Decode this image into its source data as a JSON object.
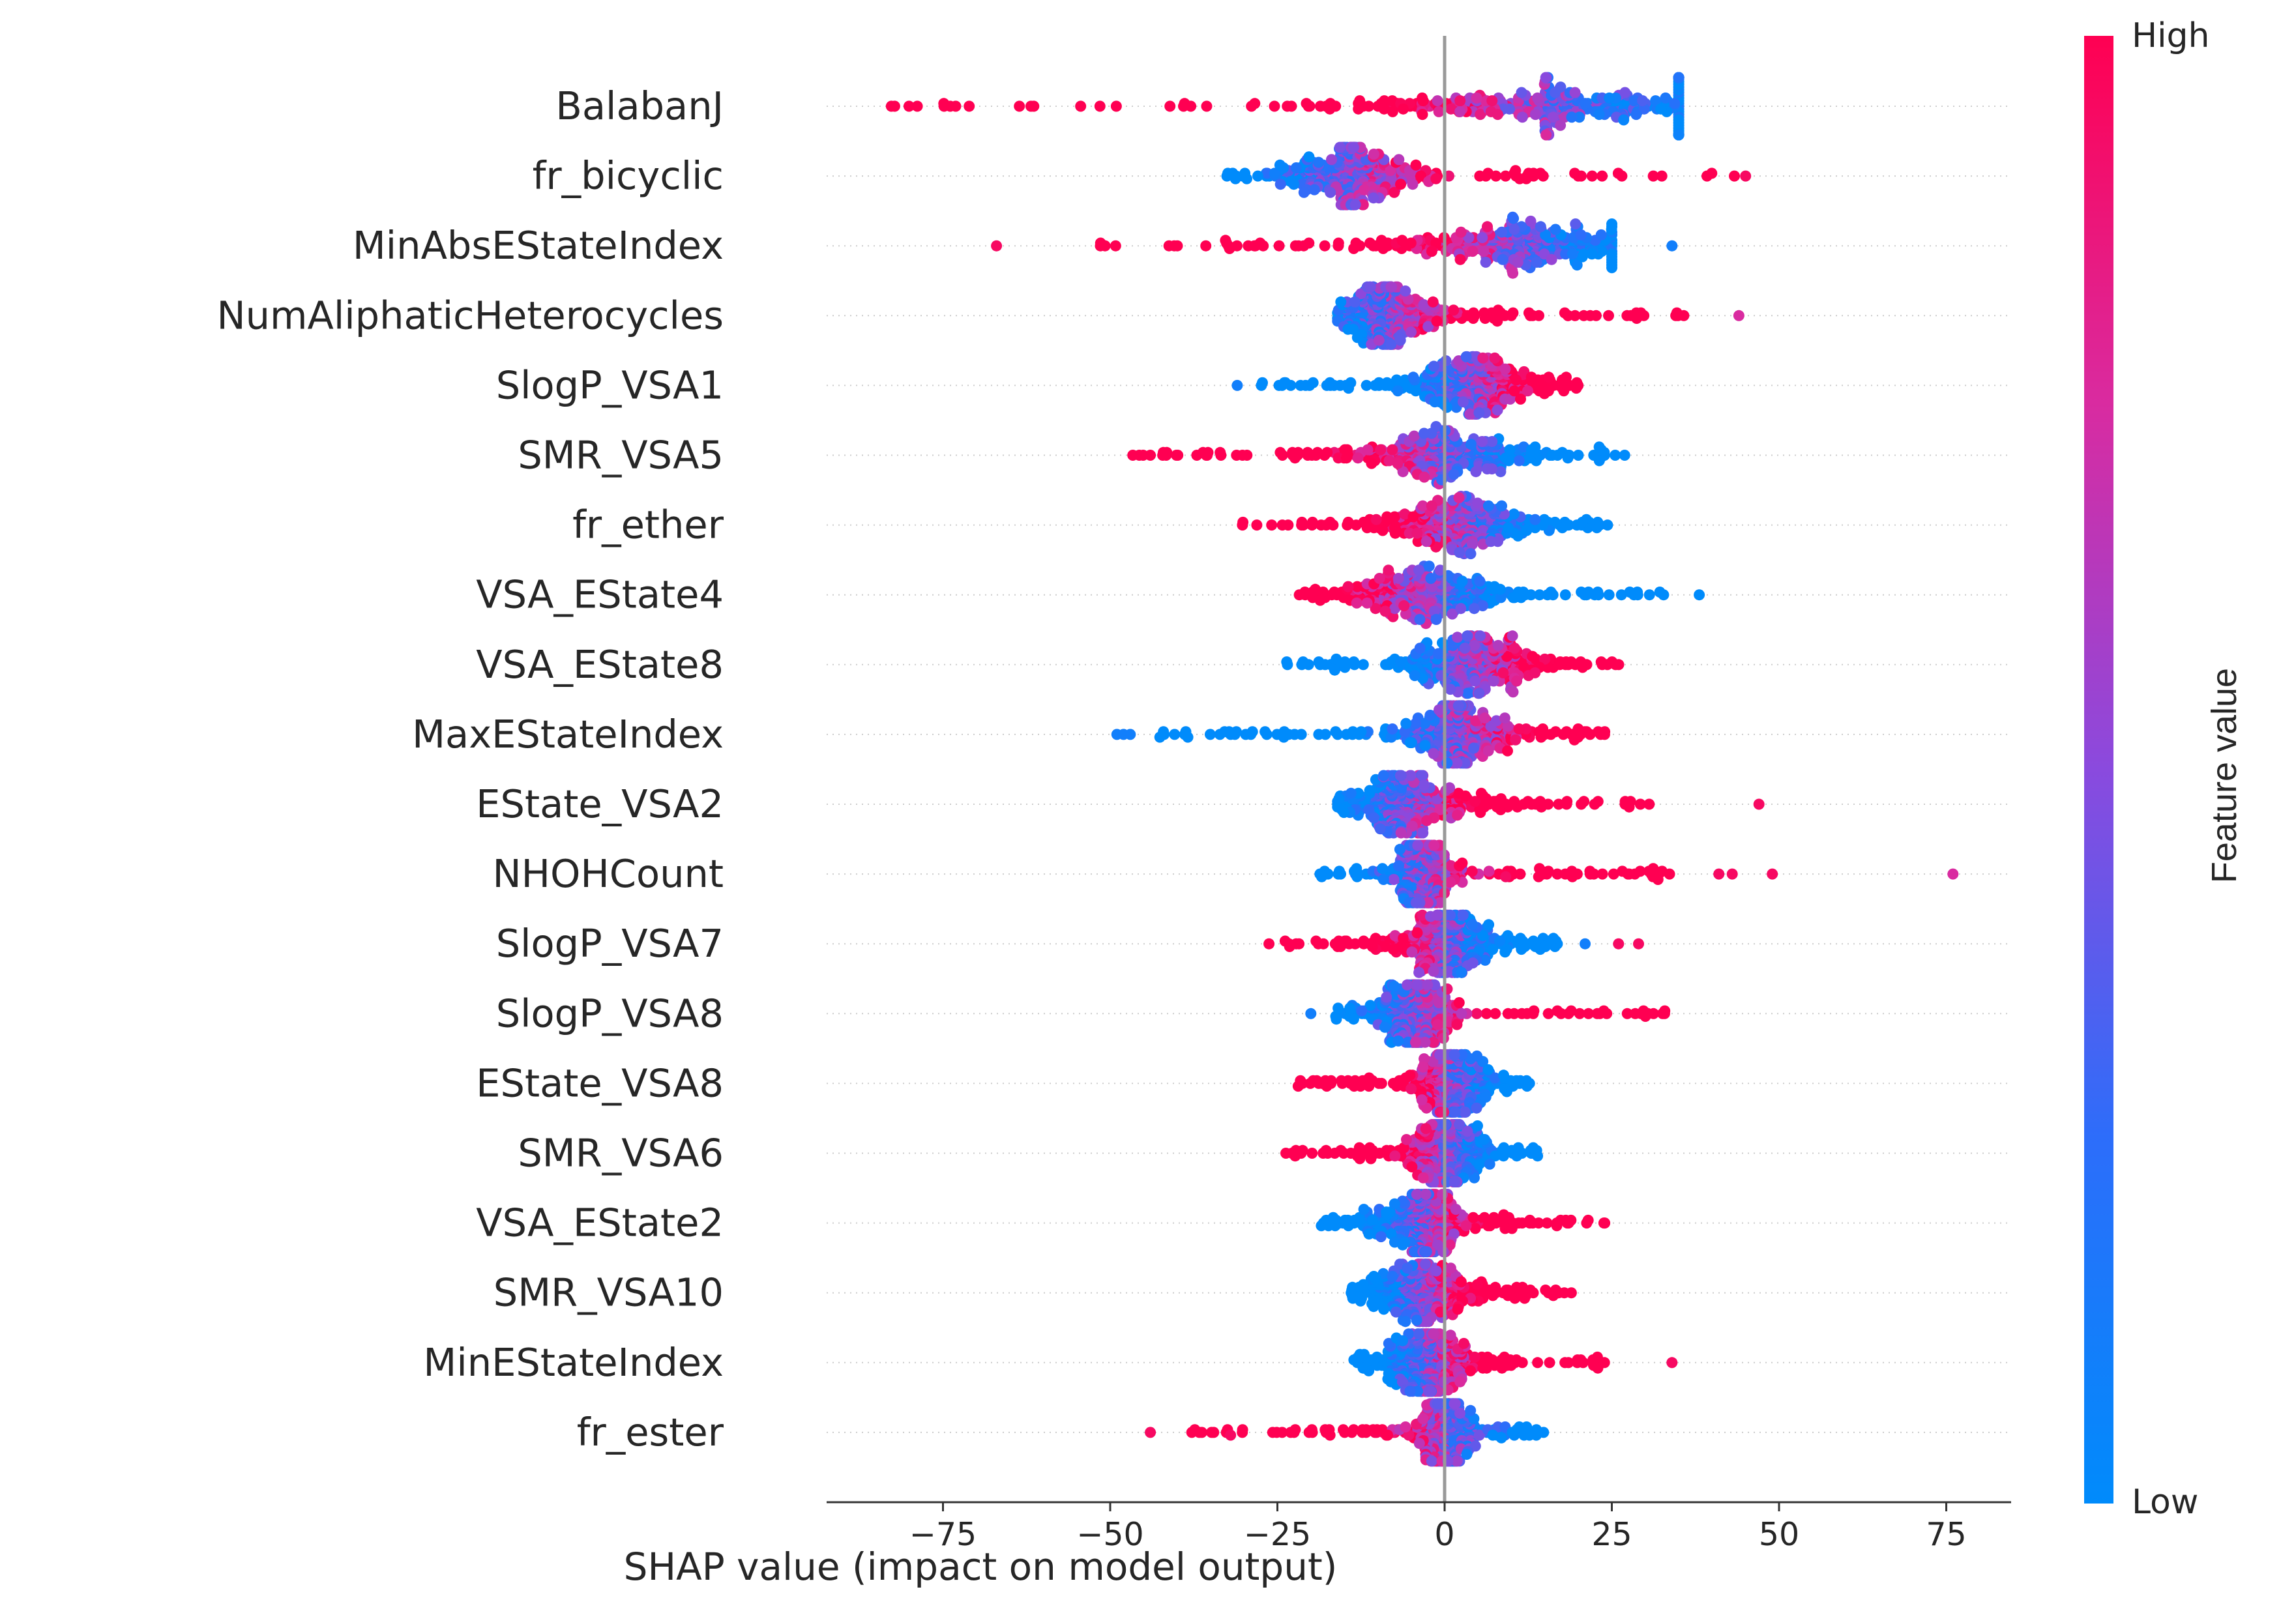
{
  "chart_data": {
    "type": "scatter",
    "subtype": "shap-beeswarm",
    "title": "",
    "xlabel": "SHAP value (impact on model output)",
    "ylabel": "",
    "xlim": [
      -92,
      85
    ],
    "xticks": [
      {
        "value": -75,
        "label": "−75"
      },
      {
        "value": -50,
        "label": "−50"
      },
      {
        "value": -25,
        "label": "−25"
      },
      {
        "value": 0,
        "label": "0"
      },
      {
        "value": 25,
        "label": "25"
      },
      {
        "value": 50,
        "label": "50"
      },
      {
        "value": 75,
        "label": "75"
      }
    ],
    "zero_line": true,
    "grid": false,
    "colorbar": {
      "title": "Feature value",
      "high_label": "High",
      "low_label": "Low",
      "low_color": "#008bfb",
      "high_color": "#ff0052",
      "placement": "right"
    },
    "features": [
      {
        "name": "BalabanJ",
        "range": [
          -85,
          35
        ],
        "low_side": "positive",
        "mode": 15,
        "spread": 18,
        "outliers": []
      },
      {
        "name": "fr_bicyclic",
        "range": [
          -33,
          45
        ],
        "low_side": "negative",
        "mode": -14,
        "spread": 5,
        "outliers": [
          {
            "x": 45,
            "v": 0.95
          }
        ]
      },
      {
        "name": "MinAbsEStateIndex",
        "range": [
          -52,
          25
        ],
        "low_side": "positive",
        "mode": 10,
        "spread": 10,
        "outliers": [
          {
            "x": -67,
            "v": 0.95
          },
          {
            "x": 34,
            "v": 0.1
          }
        ]
      },
      {
        "name": "NumAliphaticHeterocycles",
        "range": [
          -16,
          38
        ],
        "low_side": "negative",
        "mode": -8,
        "spread": 4,
        "outliers": [
          {
            "x": 44,
            "v": 0.75
          }
        ]
      },
      {
        "name": "SlogP_VSA1",
        "range": [
          -28,
          20
        ],
        "low_side": "negative",
        "mode": 4,
        "spread": 5,
        "outliers": [
          {
            "x": -31,
            "v": 0.1
          }
        ]
      },
      {
        "name": "SMR_VSA5",
        "range": [
          -50,
          27
        ],
        "low_side": "positive",
        "mode": -1,
        "spread": 8,
        "outliers": []
      },
      {
        "name": "fr_ether",
        "range": [
          -31,
          26
        ],
        "low_side": "positive",
        "mode": 3,
        "spread": 6,
        "outliers": []
      },
      {
        "name": "VSA_EState4",
        "range": [
          -22,
          39
        ],
        "low_side": "positive",
        "mode": -3,
        "spread": 7,
        "outliers": []
      },
      {
        "name": "VSA_EState8",
        "range": [
          -24,
          27
        ],
        "low_side": "negative",
        "mode": 4,
        "spread": 5,
        "outliers": []
      },
      {
        "name": "MaxEStateIndex",
        "range": [
          -43,
          24
        ],
        "low_side": "negative",
        "mode": 2,
        "spread": 4,
        "outliers": [
          {
            "x": -49,
            "v": 0.1
          },
          {
            "x": -48,
            "v": 0.1
          },
          {
            "x": -47,
            "v": 0.1
          }
        ]
      },
      {
        "name": "EState_VSA2",
        "range": [
          -16,
          31
        ],
        "low_side": "negative",
        "mode": -5,
        "spread": 5,
        "outliers": [
          {
            "x": 47,
            "v": 0.95
          }
        ]
      },
      {
        "name": "NHOHCount",
        "range": [
          -19,
          35
        ],
        "low_side": "negative",
        "mode": -3,
        "spread": 2,
        "outliers": [
          {
            "x": 41,
            "v": 0.95
          },
          {
            "x": 43,
            "v": 0.95
          },
          {
            "x": 49,
            "v": 0.95
          },
          {
            "x": 76,
            "v": 0.75
          }
        ]
      },
      {
        "name": "SlogP_VSA7",
        "range": [
          -27,
          17
        ],
        "low_side": "positive",
        "mode": 0,
        "spread": 4,
        "outliers": [
          {
            "x": 21,
            "v": 0.1
          },
          {
            "x": 26,
            "v": 0.95
          },
          {
            "x": 29,
            "v": 0.95
          }
        ]
      },
      {
        "name": "SlogP_VSA8",
        "range": [
          -17,
          33
        ],
        "low_side": "negative",
        "mode": -4,
        "spread": 3,
        "outliers": [
          {
            "x": -20,
            "v": 0.1
          }
        ]
      },
      {
        "name": "EState_VSA8",
        "range": [
          -22,
          13
        ],
        "low_side": "positive",
        "mode": 1,
        "spread": 3,
        "outliers": []
      },
      {
        "name": "SMR_VSA6",
        "range": [
          -24,
          14
        ],
        "low_side": "positive",
        "mode": 0,
        "spread": 3,
        "outliers": []
      },
      {
        "name": "VSA_EState2",
        "range": [
          -20,
          24
        ],
        "low_side": "negative",
        "mode": -3,
        "spread": 4,
        "outliers": []
      },
      {
        "name": "SMR_VSA10",
        "range": [
          -14,
          19
        ],
        "low_side": "negative",
        "mode": -3,
        "spread": 4,
        "outliers": []
      },
      {
        "name": "MinEStateIndex",
        "range": [
          -14,
          24
        ],
        "low_side": "negative",
        "mode": -2,
        "spread": 4,
        "outliers": [
          {
            "x": 34,
            "v": 0.95
          }
        ]
      },
      {
        "name": "fr_ester",
        "range": [
          -38,
          15
        ],
        "low_side": "positive",
        "mode": 0,
        "spread": 2,
        "outliers": [
          {
            "x": -44,
            "v": 0.95
          },
          {
            "x": -32,
            "v": 0.95
          }
        ]
      }
    ]
  }
}
